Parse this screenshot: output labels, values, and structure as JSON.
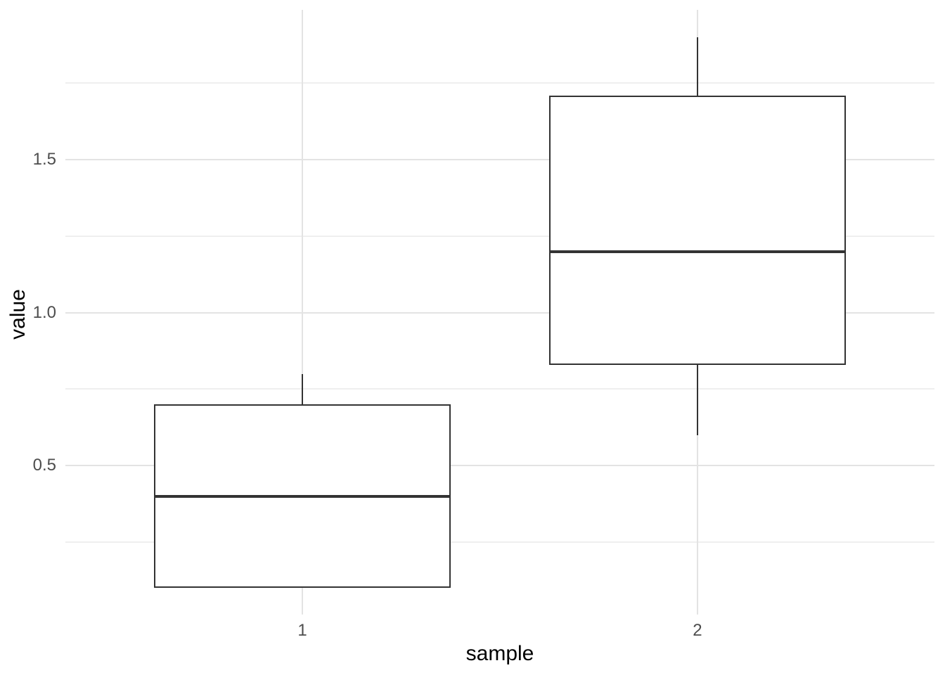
{
  "chart_data": {
    "type": "boxplot",
    "title": "",
    "xlabel": "sample",
    "ylabel": "value",
    "categories": [
      "1",
      "2"
    ],
    "x_positions": [
      1,
      2
    ],
    "x_range": [
      0.4,
      2.6
    ],
    "ylim": [
      0.013,
      1.99
    ],
    "y_major_ticks": {
      "values": [
        0.5,
        1.0,
        1.5
      ],
      "labels": [
        "0.5",
        "1.0",
        "1.5"
      ]
    },
    "y_minor_gridlines": [
      0.25,
      0.75,
      1.25,
      1.75
    ],
    "grid": "horizontal major+minor gridlines; vertical major gridlines at each category; no axis lines or ticks",
    "legend_position": "none",
    "box_width": 0.75,
    "boxes": [
      {
        "category": "1",
        "x": 1,
        "whisker_low": 0.1,
        "q1": 0.1,
        "median": 0.4,
        "q3": 0.7,
        "whisker_high": 0.8
      },
      {
        "category": "2",
        "x": 2,
        "whisker_low": 0.6,
        "q1": 0.83,
        "median": 1.2,
        "q3": 1.71,
        "whisker_high": 1.9
      }
    ]
  },
  "style": {
    "box_border_color": "#333333",
    "median_color": "#333333",
    "whisker_color": "#333333",
    "grid_major_color": "#E3E3E3",
    "grid_minor_color": "#EFEFEF",
    "tick_label_color": "#4D4D4D",
    "axis_title_color": "#000000",
    "background_color": "#FFFFFF"
  }
}
